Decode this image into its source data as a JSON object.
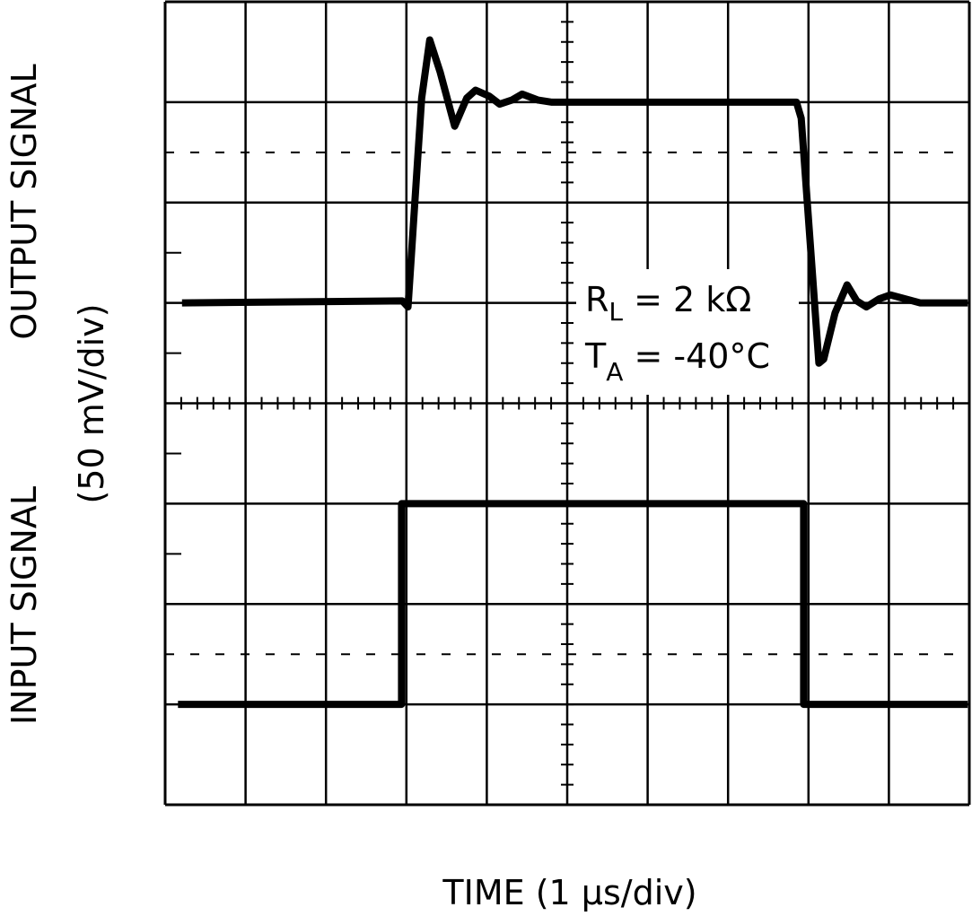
{
  "chart_data": {
    "type": "line",
    "title": "",
    "xlabel": "TIME (1 µs/div)",
    "ylabel_output": "OUTPUT SIGNAL",
    "ylabel_input": "INPUT SIGNAL",
    "ylabel_scale": "(50 mV/div)",
    "xlim": [
      0,
      10
    ],
    "x_divisions": 10,
    "y_divisions": 8,
    "grid": true,
    "annotations": {
      "load": {
        "main": "R",
        "sub": "L",
        "rest": " = 2 kΩ"
      },
      "temp": {
        "main": "T",
        "sub": "A",
        "rest": " = -40°C"
      }
    },
    "series": [
      {
        "role": "output",
        "x": [
          0.21,
          2.95,
          3.02,
          3.19,
          3.29,
          3.42,
          3.6,
          3.75,
          3.86,
          4.03,
          4.16,
          4.31,
          4.44,
          4.64,
          4.81,
          7.85,
          7.91,
          8.13,
          8.19,
          8.33,
          8.48,
          8.6,
          8.72,
          8.88,
          9.02,
          9.39,
          9.98
        ],
        "y": [
          0,
          1,
          -2,
          102,
          131,
          115,
          88,
          102,
          106,
          103,
          99,
          101,
          104,
          101,
          100,
          100,
          92,
          -30,
          -28,
          -5,
          9,
          1,
          -2,
          2,
          4,
          0,
          0
        ]
      },
      {
        "role": "input",
        "x": [
          0.16,
          2.94,
          2.94,
          7.94,
          7.94,
          9.98
        ],
        "y": [
          0,
          0,
          100,
          100,
          0,
          0
        ]
      }
    ],
    "color": "#000000"
  }
}
